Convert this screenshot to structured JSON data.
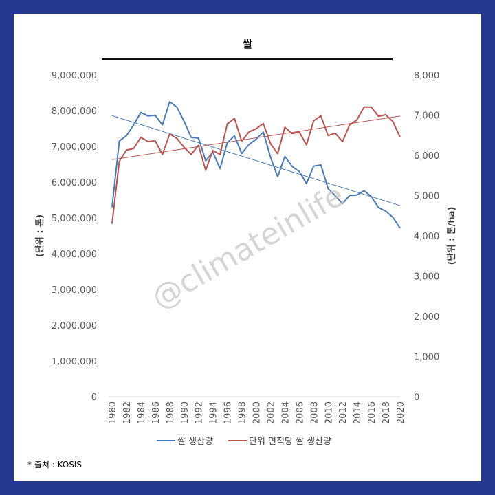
{
  "title": "쌀",
  "source": "* 출처 : KOSIS",
  "watermark": "@climateinlife",
  "colors": {
    "background": "#253a8e",
    "series1": "#4a7ab5",
    "series2": "#b85450"
  },
  "chart_data": {
    "type": "line",
    "years": [
      1980,
      1981,
      1982,
      1983,
      1984,
      1985,
      1986,
      1987,
      1988,
      1989,
      1990,
      1991,
      1992,
      1993,
      1994,
      1995,
      1996,
      1997,
      1998,
      1999,
      2000,
      2001,
      2002,
      2003,
      2004,
      2005,
      2006,
      2007,
      2008,
      2009,
      2010,
      2011,
      2012,
      2013,
      2014,
      2015,
      2016,
      2017,
      2018,
      2019,
      2020
    ],
    "x_tick_labels": [
      "1980",
      "1982",
      "1984",
      "1986",
      "1988",
      "1990",
      "1992",
      "1994",
      "1996",
      "1998",
      "2000",
      "2002",
      "2004",
      "2006",
      "2008",
      "2010",
      "2012",
      "2014",
      "2016",
      "2018",
      "2020"
    ],
    "y_left": {
      "label": "(단위 : 톤)",
      "ylim": [
        0,
        9000000
      ],
      "ticks": [
        "0",
        "1,000,000",
        "2,000,000",
        "3,000,000",
        "4,000,000",
        "5,000,000",
        "6,000,000",
        "7,000,000",
        "8,000,000",
        "9,000,000"
      ]
    },
    "y_right": {
      "label": "(단위 : 톤/ha)",
      "ylim": [
        0,
        8000
      ],
      "ticks": [
        "0",
        "1,000",
        "2,000",
        "3,000",
        "4,000",
        "5,000",
        "6,000",
        "7,000",
        "8,000"
      ]
    },
    "series": [
      {
        "name": "쌀 생산량",
        "axis": "left",
        "color": "#4a7ab5",
        "values": [
          5300000,
          7150000,
          7300000,
          7600000,
          7950000,
          7850000,
          7870000,
          7600000,
          8250000,
          8100000,
          7700000,
          7250000,
          7230000,
          6600000,
          6840000,
          6380000,
          7100000,
          7300000,
          6800000,
          7050000,
          7200000,
          7400000,
          6700000,
          6150000,
          6720000,
          6440000,
          6300000,
          5960000,
          6450000,
          6480000,
          5820000,
          5620000,
          5400000,
          5630000,
          5640000,
          5760000,
          5600000,
          5290000,
          5190000,
          5020000,
          4710000
        ]
      },
      {
        "name": "단위 면적당 쌀 생산량",
        "axis": "right",
        "color": "#b85450",
        "values": [
          4300,
          5850,
          6130,
          6170,
          6450,
          6340,
          6360,
          6020,
          6530,
          6420,
          6200,
          6020,
          6250,
          5630,
          6120,
          6020,
          6780,
          6920,
          6350,
          6580,
          6660,
          6790,
          6290,
          6040,
          6700,
          6540,
          6580,
          6260,
          6860,
          6980,
          6490,
          6550,
          6340,
          6760,
          6880,
          7200,
          7200,
          6970,
          7010,
          6840,
          6450
        ]
      }
    ],
    "trendlines": true,
    "grid": false,
    "legend_position": "bottom"
  }
}
